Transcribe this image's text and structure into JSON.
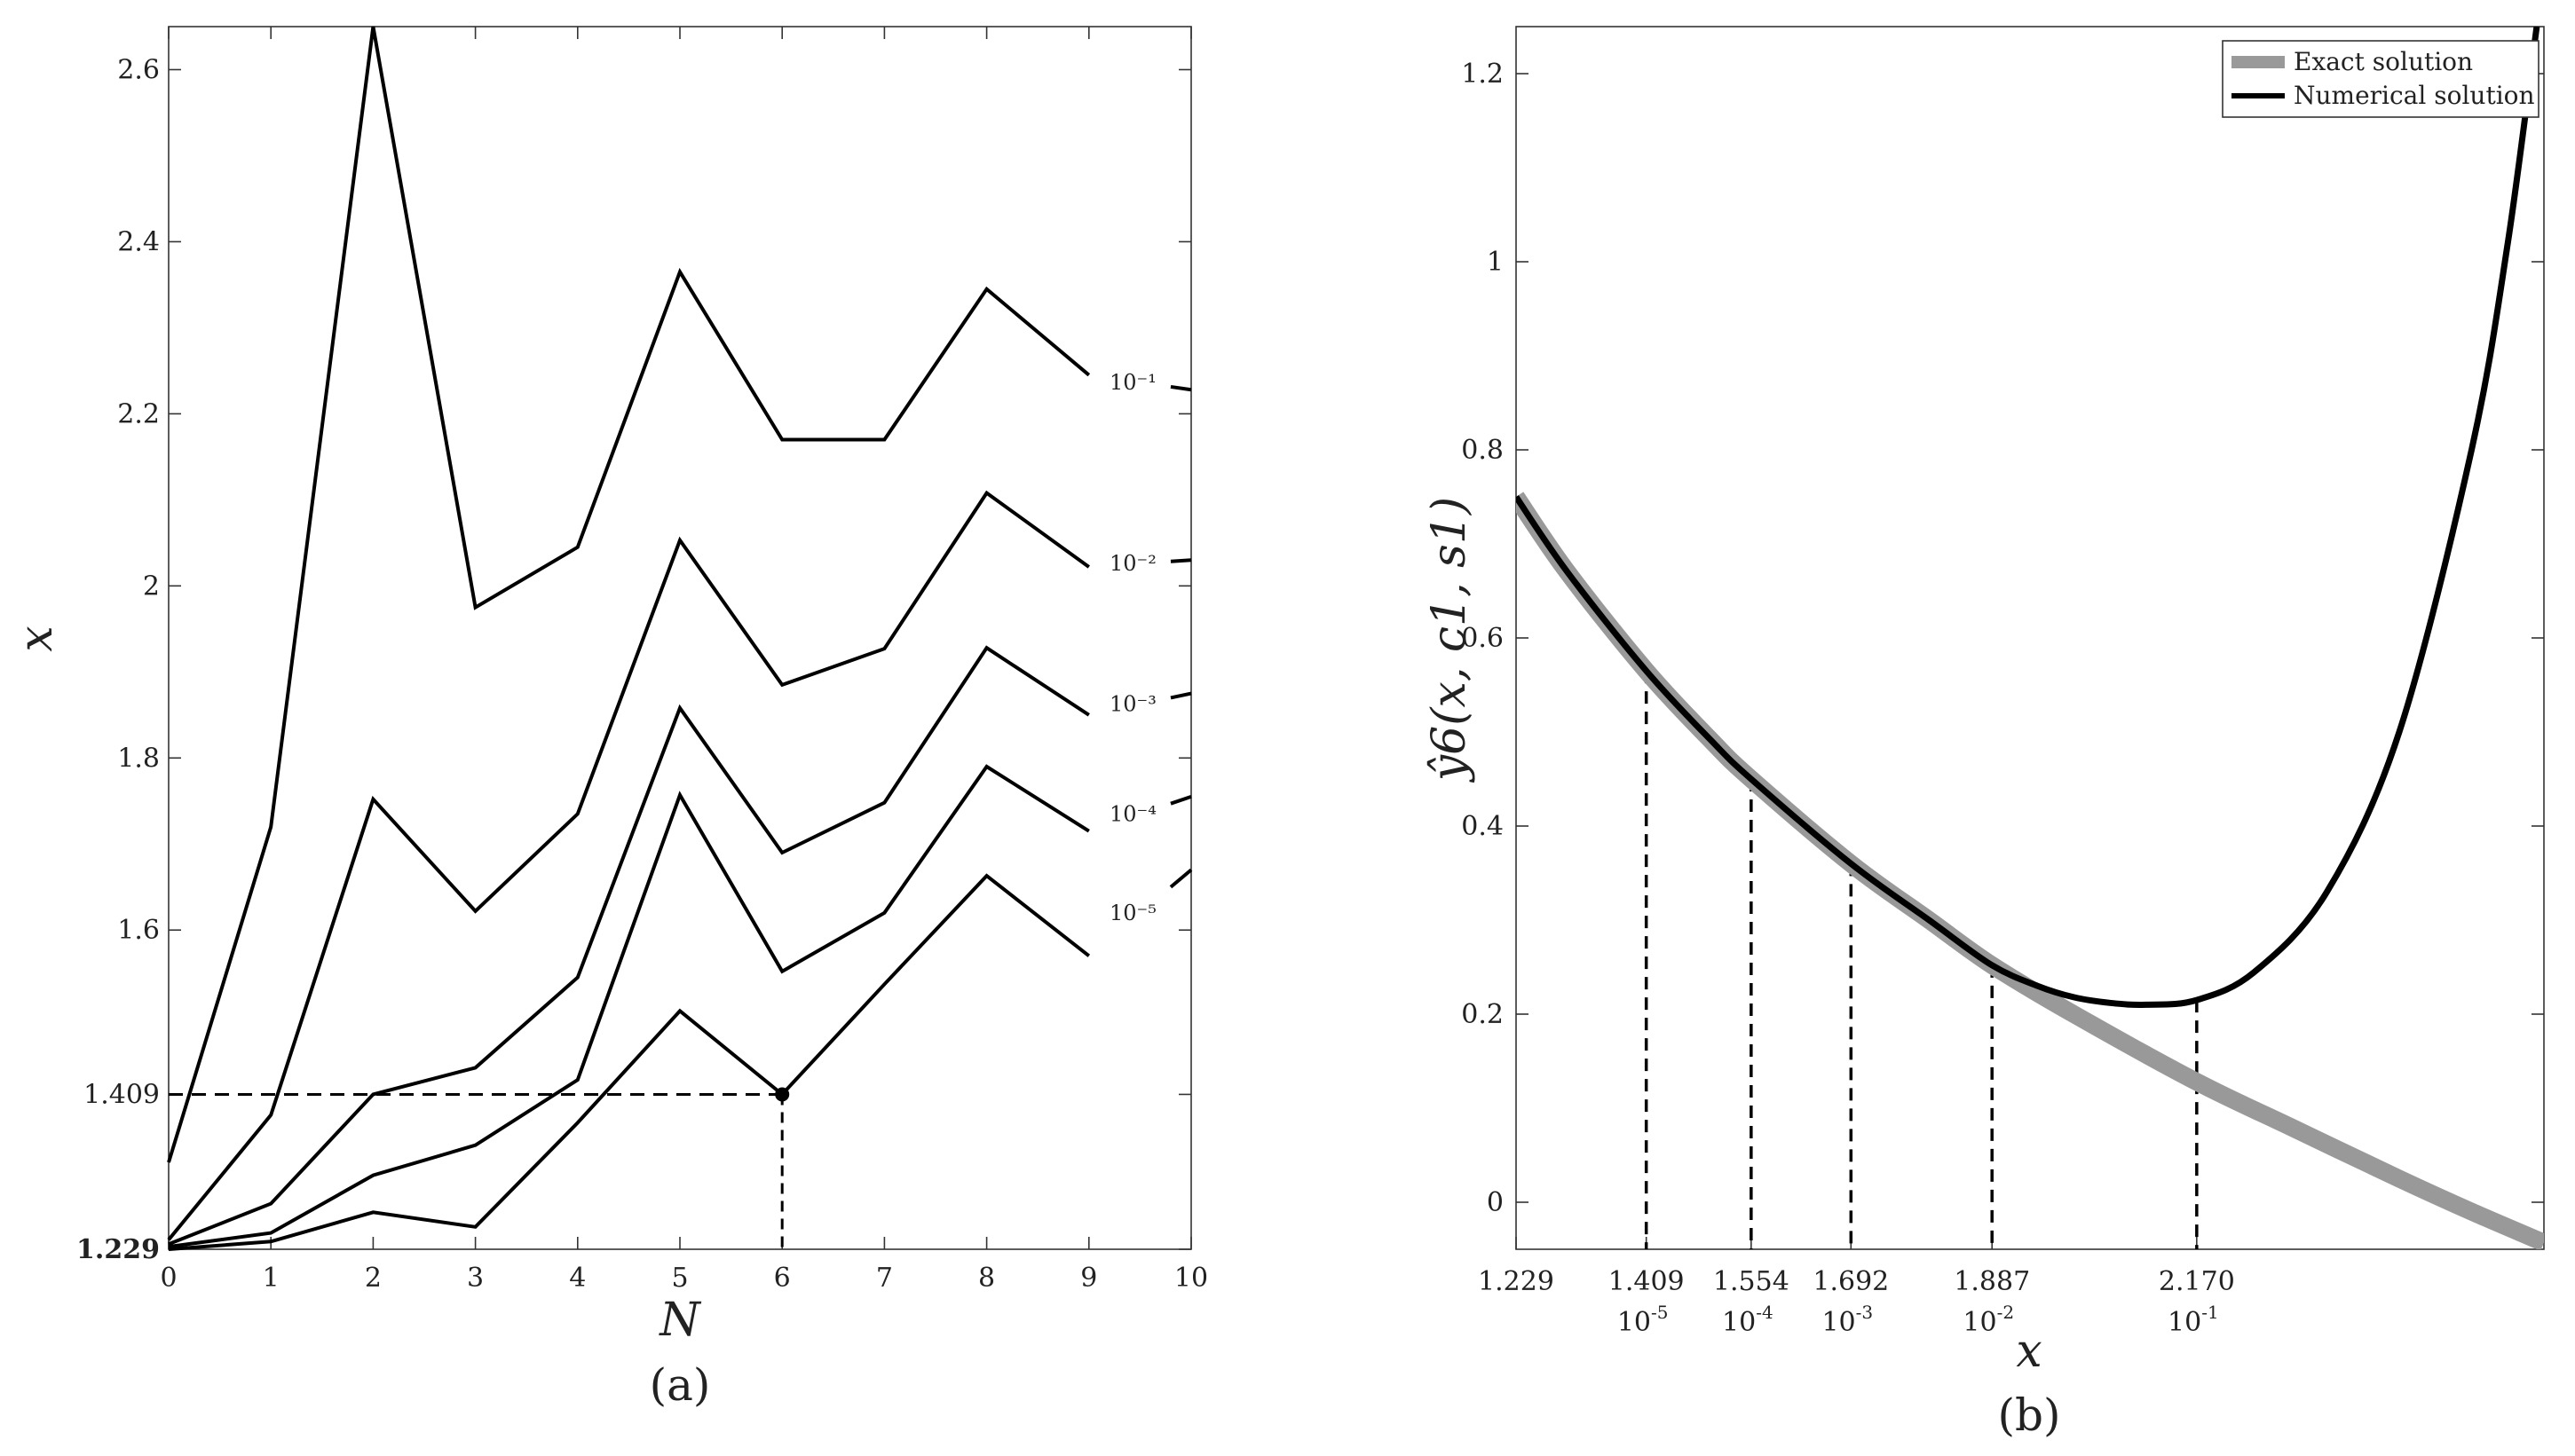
{
  "chart_data": [
    {
      "type": "line",
      "panel": "a",
      "caption": "(a)",
      "title": "",
      "xlabel": "N",
      "ylabel": "x",
      "xlim": [
        0,
        10
      ],
      "ylim": [
        1.229,
        2.65
      ],
      "x_ticks": [
        "0",
        "1",
        "2",
        "3",
        "4",
        "5",
        "6",
        "7",
        "8",
        "9",
        "10"
      ],
      "y_ticks": [
        {
          "value": 1.229,
          "label": "1.229",
          "bold": true
        },
        {
          "value": 1.409,
          "label": "1.409",
          "bold": false
        },
        {
          "value": 1.6,
          "label": "1.6",
          "bold": false
        },
        {
          "value": 1.8,
          "label": "1.8",
          "bold": false
        },
        {
          "value": 2.0,
          "label": "2",
          "bold": false
        },
        {
          "value": 2.2,
          "label": "2.2",
          "bold": false
        },
        {
          "value": 2.4,
          "label": "2.4",
          "bold": false
        },
        {
          "value": 2.6,
          "label": "2.6",
          "bold": false
        }
      ],
      "x": [
        0,
        1,
        2,
        3,
        4,
        5,
        6,
        7,
        8,
        9,
        10
      ],
      "series": [
        {
          "name": "10⁻¹",
          "values": [
            1.33,
            1.72,
            2.65,
            1.975,
            2.045,
            2.365,
            2.17,
            2.17,
            2.345,
            2.245,
            2.228
          ]
        },
        {
          "name": "10⁻²",
          "values": [
            1.24,
            1.385,
            1.752,
            1.622,
            1.735,
            2.053,
            1.885,
            1.927,
            2.108,
            2.022,
            2.03
          ]
        },
        {
          "name": "10⁻³",
          "values": [
            1.235,
            1.282,
            1.409,
            1.44,
            1.545,
            1.858,
            1.69,
            1.748,
            1.928,
            1.85,
            1.875
          ]
        },
        {
          "name": "10⁻⁴",
          "values": [
            1.232,
            1.248,
            1.315,
            1.35,
            1.426,
            1.757,
            1.552,
            1.62,
            1.79,
            1.715,
            1.755
          ]
        },
        {
          "name": "10⁻⁵",
          "values": [
            1.229,
            1.238,
            1.272,
            1.255,
            1.376,
            1.506,
            1.409,
            1.537,
            1.663,
            1.57,
            1.67
          ]
        }
      ],
      "annotation": {
        "point": [
          6,
          1.409
        ],
        "label": "1.409"
      }
    },
    {
      "type": "line",
      "panel": "b",
      "caption": "(b)",
      "title": "",
      "xlabel": "x",
      "ylabel": "ŷ6(x, c1, s1)",
      "xlim": [
        1.229,
        2.65
      ],
      "ylim": [
        -0.05,
        1.25
      ],
      "y_ticks": [
        {
          "value": 0,
          "label": "0"
        },
        {
          "value": 0.2,
          "label": "0.2"
        },
        {
          "value": 0.4,
          "label": "0.4"
        },
        {
          "value": 0.6,
          "label": "0.6"
        },
        {
          "value": 0.8,
          "label": "0.8"
        },
        {
          "value": 1.0,
          "label": "1"
        },
        {
          "value": 1.2,
          "label": "1.2"
        }
      ],
      "x_ticks": [
        {
          "value": 1.229,
          "label": "1.229",
          "sub": ""
        },
        {
          "value": 1.409,
          "label": "1.409",
          "sub": "10",
          "sub_exp": "-5"
        },
        {
          "value": 1.554,
          "label": "1.554",
          "sub": "10",
          "sub_exp": "-4"
        },
        {
          "value": 1.692,
          "label": "1.692",
          "sub": "10",
          "sub_exp": "-3"
        },
        {
          "value": 1.887,
          "label": "1.887",
          "sub": "10",
          "sub_exp": "-2"
        },
        {
          "value": 2.17,
          "label": "2.170",
          "sub": "10",
          "sub_exp": "-1"
        }
      ],
      "legend": {
        "position": "top-right",
        "entries": [
          {
            "name": "Exact solution",
            "color": "#999999"
          },
          {
            "name": "Numerical solution",
            "color": "#000000"
          }
        ]
      },
      "series": [
        {
          "name": "Exact solution",
          "color": "#999999",
          "x": [
            1.229,
            1.3,
            1.409,
            1.5,
            1.554,
            1.692,
            1.8,
            1.887,
            2.0,
            2.17,
            2.3,
            2.45,
            2.55,
            2.65
          ],
          "values": [
            0.75,
            0.67,
            0.565,
            0.49,
            0.45,
            0.36,
            0.3,
            0.252,
            0.2,
            0.128,
            0.08,
            0.025,
            -0.01,
            -0.043
          ]
        },
        {
          "name": "Numerical solution",
          "color": "#000000",
          "x": [
            1.229,
            1.3,
            1.409,
            1.5,
            1.554,
            1.692,
            1.8,
            1.887,
            1.95,
            2.0,
            2.05,
            2.1,
            2.17,
            2.25,
            2.35,
            2.45,
            2.55,
            2.6,
            2.64
          ],
          "values": [
            0.75,
            0.67,
            0.565,
            0.49,
            0.45,
            0.36,
            0.3,
            0.252,
            0.23,
            0.218,
            0.212,
            0.21,
            0.215,
            0.245,
            0.33,
            0.5,
            0.8,
            1.02,
            1.25
          ]
        }
      ],
      "dashed_x": [
        1.409,
        1.554,
        1.692,
        1.887,
        2.17
      ]
    }
  ]
}
